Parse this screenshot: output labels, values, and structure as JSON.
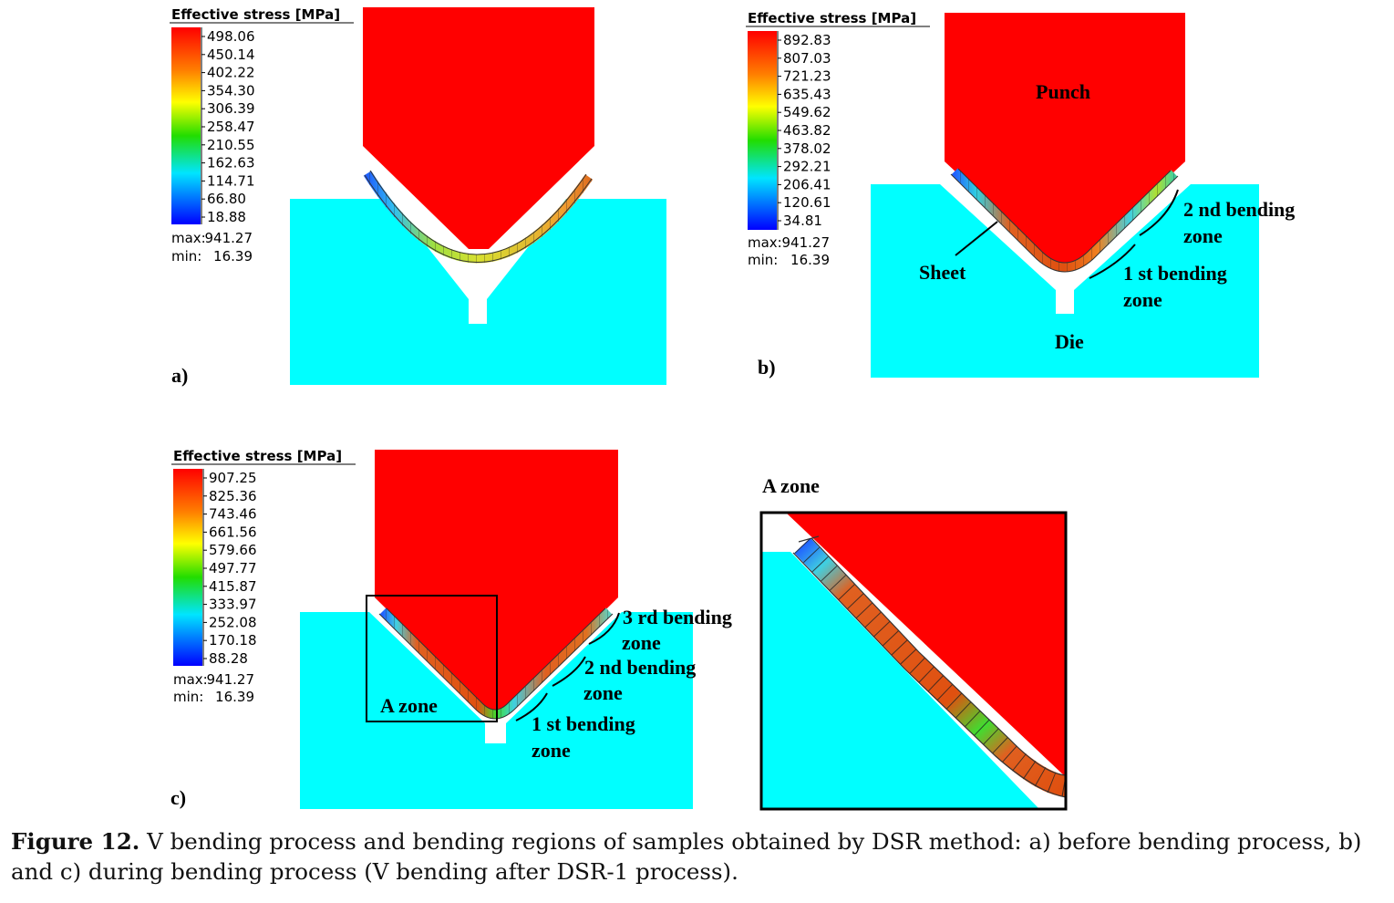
{
  "panels": [
    {
      "label": "a)",
      "legend": {
        "title": "Effective stress [MPa]",
        "ticks": [
          "498.06",
          "450.14",
          "402.22",
          "354.30",
          "306.39",
          "258.47",
          "210.55",
          "162.63",
          "114.71",
          "66.80",
          "18.88"
        ],
        "max_label": "max:",
        "max_value": "941.27",
        "min_label": "min:",
        "min_value": "16.39"
      }
    },
    {
      "label": "b)",
      "legend": {
        "title": "Effective stress [MPa]",
        "ticks": [
          "892.83",
          "807.03",
          "721.23",
          "635.43",
          "549.62",
          "463.82",
          "378.02",
          "292.21",
          "206.41",
          "120.61",
          "34.81"
        ],
        "max_label": "max:",
        "max_value": "941.27",
        "min_label": "min:",
        "min_value": "16.39"
      },
      "annotations": {
        "punch": "Punch",
        "sheet": "Sheet",
        "die": "Die",
        "second_zone_1": "2 nd bending",
        "second_zone_2": "zone",
        "first_zone_1": "1 st bending",
        "first_zone_2": "zone"
      }
    },
    {
      "label": "c)",
      "legend": {
        "title": "Effective stress [MPa]",
        "ticks": [
          "907.25",
          "825.36",
          "743.46",
          "661.56",
          "579.66",
          "497.77",
          "415.87",
          "333.97",
          "252.08",
          "170.18",
          "88.28"
        ],
        "max_label": "max:",
        "max_value": "941.27",
        "min_label": "min:",
        "min_value": "16.39"
      },
      "annotations": {
        "a_zone": "A zone",
        "third_zone_1": "3 rd bending",
        "third_zone_2": "zone",
        "second_zone_1": "2 nd bending",
        "second_zone_2": "zone",
        "first_zone_1": "1 st bending",
        "first_zone_2": "zone"
      }
    },
    {
      "title": "A zone"
    }
  ],
  "caption": {
    "label": "Figure 12.",
    "text": " V bending process and bending regions of samples obtained by DSR method: a) before bending process, b) and c) during bending process (V bending after DSR-1 process)."
  },
  "colors": {
    "punch": "#ff0000",
    "die": "#00ffff",
    "legend_gradient": [
      "#ff0000",
      "#ff8000",
      "#ffff00",
      "#00dd00",
      "#00e0ff",
      "#0000ff"
    ]
  }
}
